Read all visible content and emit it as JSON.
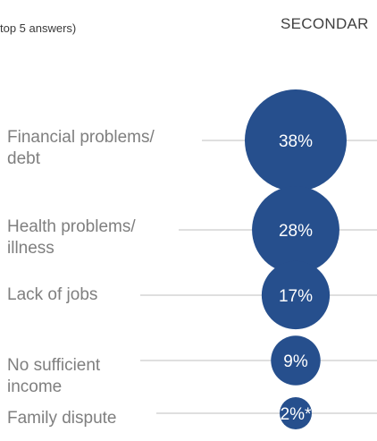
{
  "header": {
    "left_text": "top 5 answers)",
    "right_text": "SECONDAR"
  },
  "chart_data": {
    "type": "bubble",
    "title": "",
    "categories": [
      [
        "Financial problems/",
        "debt"
      ],
      [
        "Health problems/",
        "illness"
      ],
      [
        "Lack of jobs"
      ],
      [
        "No sufficient",
        "income"
      ],
      [
        "Family dispute"
      ]
    ],
    "values": [
      38,
      28,
      17,
      9,
      2
    ],
    "data_labels": [
      "38%",
      "28%",
      "17%",
      "9%",
      "2%*"
    ],
    "color": "#264f8d",
    "label_color": "#ffffff",
    "line_color": "#bfbfbf",
    "category_text_color": "#7f7f7f"
  }
}
